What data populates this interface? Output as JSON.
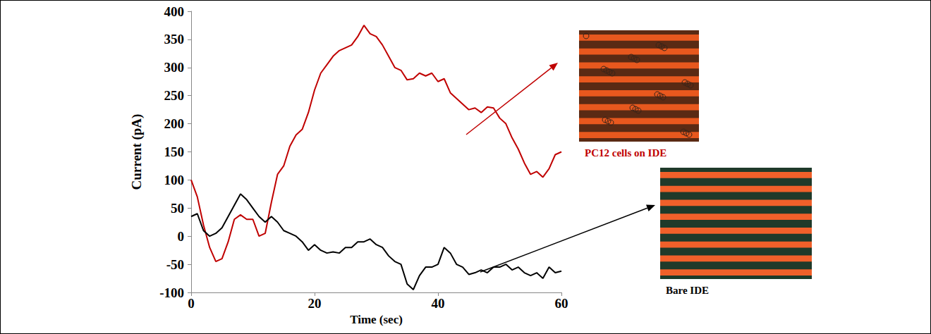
{
  "chart_data": {
    "type": "line",
    "xlabel": "Time (sec)",
    "ylabel": "Current (pA)",
    "x": [
      0,
      1,
      2,
      3,
      4,
      5,
      6,
      7,
      8,
      9,
      10,
      11,
      12,
      13,
      14,
      15,
      16,
      17,
      18,
      19,
      20,
      21,
      22,
      23,
      24,
      25,
      26,
      27,
      28,
      29,
      30,
      31,
      32,
      33,
      34,
      35,
      36,
      37,
      38,
      39,
      40,
      41,
      42,
      43,
      44,
      45,
      46,
      47,
      48,
      49,
      50,
      51,
      52,
      53,
      54,
      55,
      56,
      57,
      58,
      59,
      60
    ],
    "series": [
      {
        "name": "PC12 cells on IDE",
        "color": "#c00000",
        "values": [
          100,
          70,
          20,
          -20,
          -45,
          -40,
          -10,
          30,
          38,
          30,
          30,
          0,
          5,
          60,
          110,
          125,
          160,
          180,
          190,
          220,
          260,
          290,
          305,
          320,
          330,
          335,
          340,
          355,
          375,
          360,
          355,
          340,
          320,
          300,
          295,
          278,
          280,
          290,
          285,
          290,
          275,
          280,
          255,
          245,
          235,
          225,
          228,
          220,
          230,
          228,
          210,
          200,
          175,
          155,
          130,
          110,
          115,
          105,
          120,
          145,
          150
        ]
      },
      {
        "name": "Bare IDE",
        "color": "#000000",
        "values": [
          35,
          40,
          10,
          0,
          5,
          15,
          35,
          55,
          75,
          65,
          50,
          35,
          25,
          35,
          25,
          10,
          5,
          0,
          -10,
          -25,
          -15,
          -25,
          -30,
          -28,
          -30,
          -20,
          -20,
          -10,
          -10,
          -5,
          -15,
          -20,
          -35,
          -45,
          -50,
          -85,
          -95,
          -70,
          -55,
          -55,
          -50,
          -20,
          -30,
          -50,
          -55,
          -68,
          -65,
          -60,
          -65,
          -55,
          -55,
          -50,
          -60,
          -55,
          -65,
          -70,
          -65,
          -75,
          -55,
          -65,
          -62
        ]
      }
    ],
    "xlim": [
      0,
      60
    ],
    "xticks": [
      0,
      20,
      40,
      60
    ],
    "ylim": [
      -100,
      400
    ],
    "yticks": [
      -100,
      -50,
      0,
      50,
      100,
      150,
      200,
      250,
      300,
      350,
      400
    ],
    "grid": false
  }
}
